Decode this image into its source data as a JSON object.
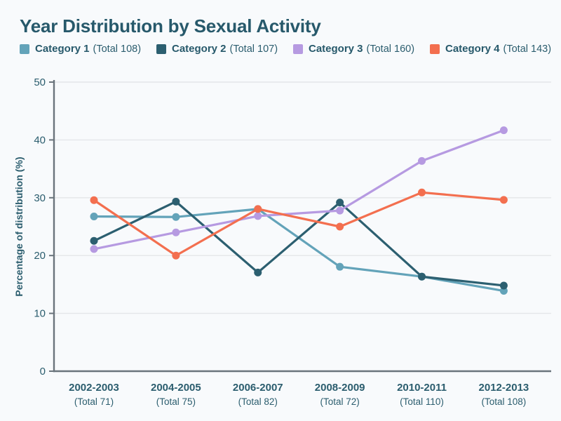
{
  "page": {
    "title": "Year Distribution by Sexual Activity"
  },
  "legend": {
    "items": [
      {
        "label": "Category 1",
        "total_label": "(Total 108)",
        "color": "#63a3b9"
      },
      {
        "label": "Category 2",
        "total_label": "(Total 107)",
        "color": "#2c5f70"
      },
      {
        "label": "Category 3",
        "total_label": "(Total 160)",
        "color": "#b69ae1"
      },
      {
        "label": "Category 4",
        "total_label": "(Total 143)",
        "color": "#f36f4f"
      }
    ]
  },
  "chart_data": {
    "type": "line",
    "title": "Year Distribution by Sexual Activity",
    "xlabel": "",
    "ylabel": "Percentage of distribution (%)",
    "ylim": [
      0,
      50
    ],
    "yticks": [
      0,
      10,
      20,
      30,
      40,
      50
    ],
    "grid": true,
    "legend_position": "top",
    "categories": [
      "2002-2003",
      "2004-2005",
      "2006-2007",
      "2008-2009",
      "2010-2011",
      "2012-2013"
    ],
    "category_totals": [
      71,
      75,
      82,
      72,
      110,
      108
    ],
    "category_total_labels": [
      "(Total 71)",
      "(Total 75)",
      "(Total 82)",
      "(Total 72)",
      "(Total 110)",
      "(Total 108)"
    ],
    "series": [
      {
        "name": "Category 1",
        "total": 108,
        "color": "#63a3b9",
        "values": [
          26.76,
          26.67,
          28.05,
          18.06,
          16.36,
          13.89
        ]
      },
      {
        "name": "Category 2",
        "total": 107,
        "color": "#2c5f70",
        "values": [
          22.54,
          29.33,
          17.07,
          29.17,
          16.36,
          14.81
        ]
      },
      {
        "name": "Category 3",
        "total": 160,
        "color": "#b69ae1",
        "values": [
          21.13,
          24.0,
          26.83,
          27.78,
          36.36,
          41.67
        ]
      },
      {
        "name": "Category 4",
        "total": 143,
        "color": "#f36f4f",
        "values": [
          29.58,
          20.0,
          28.05,
          25.0,
          30.91,
          29.63
        ]
      }
    ],
    "colors": {
      "background": "#f8fafc",
      "title_text": "#27596b",
      "axis_text": "#2b5d6e",
      "axis_line": "#6a747c",
      "gridline": "#e4e6e9"
    }
  }
}
